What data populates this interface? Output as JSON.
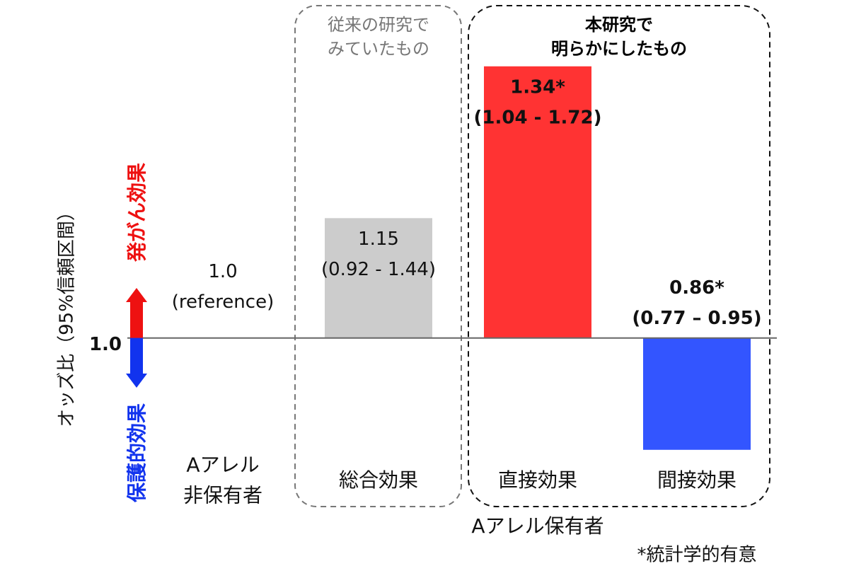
{
  "chart_data": {
    "type": "bar",
    "y_label": "オッズ比（95%信頼区間）",
    "up_label": "発がん効果",
    "down_label": "保護的効果",
    "categories": [
      [
        "Aアレル",
        "非保有者"
      ],
      [
        "総合効果"
      ],
      [
        "直接効果"
      ],
      [
        "間接効果"
      ]
    ],
    "values": [
      1.0,
      1.15,
      1.34,
      0.86
    ],
    "value_labels": [
      "1.0",
      "1.15",
      "1.34*",
      "0.86*"
    ],
    "interval_labels": [
      "(reference)",
      "(0.92 - 1.44)",
      "(1.04 - 1.72)",
      "(0.77 – 0.95)"
    ],
    "emphasis": [
      false,
      false,
      true,
      true
    ],
    "colors": [
      "#cccccc",
      "#cccccc",
      "#ff3333",
      "#3355ff"
    ],
    "boxes": [
      {
        "lines": [
          "従来の研究で",
          "みていたもの"
        ],
        "color": "#777777",
        "bold": false
      },
      {
        "lines": [
          "本研究で",
          "明らかにしたもの"
        ],
        "color": "#000000",
        "bold": true
      }
    ],
    "group_label": "Aアレル保有者",
    "footnote": "*統計学的有意",
    "ylim": [
      0.75,
      1.4
    ],
    "yticks": [
      {
        "value": 1,
        "label": "1.0"
      }
    ],
    "up_color": "#ee1111",
    "down_color": "#1133ee"
  }
}
